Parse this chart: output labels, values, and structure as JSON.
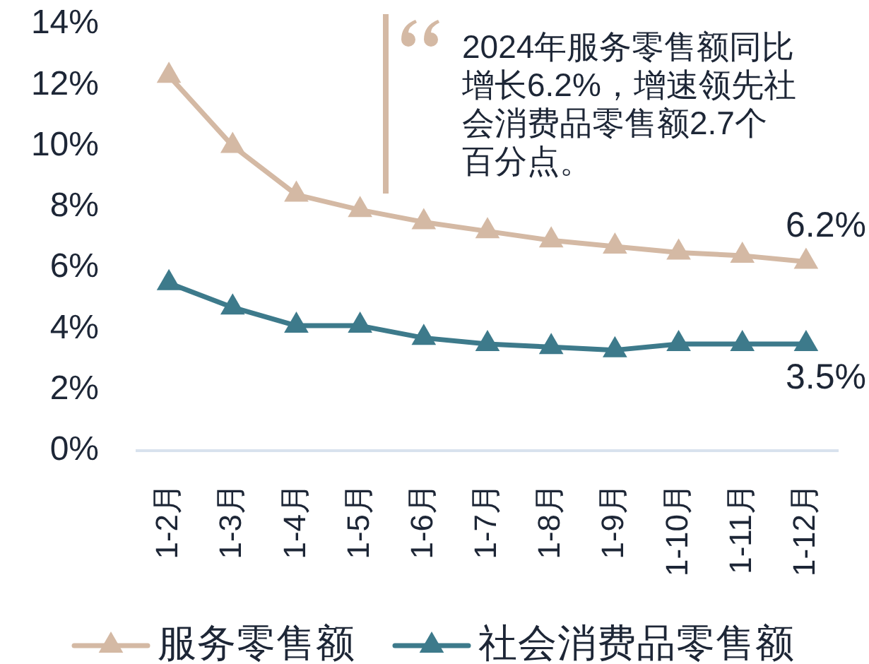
{
  "chart_data": {
    "type": "line",
    "categories": [
      "1-2月",
      "1-3月",
      "1-4月",
      "1-5月",
      "1-6月",
      "1-7月",
      "1-8月",
      "1-9月",
      "1-10月",
      "1-11月",
      "1-12月"
    ],
    "series": [
      {
        "name": "服务零售额",
        "color": "#d4b9a4",
        "values": [
          12.3,
          10.0,
          8.4,
          7.9,
          7.5,
          7.2,
          6.9,
          6.7,
          6.5,
          6.4,
          6.2
        ],
        "value_labels": [
          null,
          null,
          null,
          null,
          null,
          null,
          null,
          null,
          null,
          null,
          "6.2%"
        ]
      },
      {
        "name": "社会消费品零售额",
        "color": "#3d7a8b",
        "values": [
          5.5,
          4.7,
          4.1,
          4.1,
          3.7,
          3.5,
          3.4,
          3.3,
          3.5,
          3.5,
          3.5
        ],
        "value_labels": [
          null,
          null,
          null,
          null,
          null,
          null,
          null,
          null,
          null,
          null,
          "3.5%"
        ]
      }
    ],
    "ylim": [
      0,
      14
    ],
    "yticks": [
      {
        "value": 0,
        "label": "0%"
      },
      {
        "value": 2,
        "label": "2%"
      },
      {
        "value": 4,
        "label": "4%"
      },
      {
        "value": 6,
        "label": "6%"
      },
      {
        "value": 8,
        "label": "8%"
      },
      {
        "value": 10,
        "label": "10%"
      },
      {
        "value": 12,
        "label": "12%"
      },
      {
        "value": 14,
        "label": "14%"
      }
    ],
    "marker": "triangle",
    "line_style": "solid",
    "legend": "bottom",
    "grid": false,
    "annotations": [
      "2024年服务零售额同比增长6.2%，增速领先社会消费品零售额2.7个百分点。"
    ]
  }
}
